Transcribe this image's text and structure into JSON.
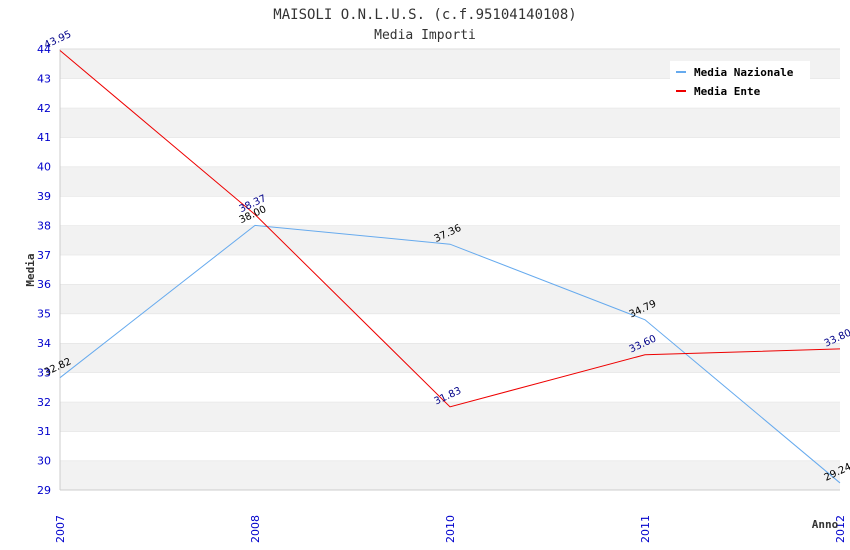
{
  "chart_data": {
    "type": "line",
    "title": "MAISOLI O.N.L.U.S. (c.f.95104140108)",
    "subtitle": "Media Importi",
    "xlabel": "Anno",
    "ylabel": "Media",
    "categories": [
      "2007",
      "2008",
      "2010",
      "2011",
      "2012"
    ],
    "ylim": [
      29,
      44
    ],
    "yticks": [
      29,
      30,
      31,
      32,
      33,
      34,
      35,
      36,
      37,
      38,
      39,
      40,
      41,
      42,
      43,
      44
    ],
    "grid": true,
    "legend_position": "top-right",
    "series": [
      {
        "name": "Media Nazionale",
        "color": "#66aaee",
        "label_color": "#000000",
        "values": [
          32.82,
          38.0,
          37.36,
          34.79,
          29.24
        ],
        "labels": [
          "32.82",
          "38.00",
          "37.36",
          "34.79",
          "29.24"
        ]
      },
      {
        "name": "Media Ente",
        "color": "#ee0000",
        "label_color": "#000088",
        "values": [
          43.95,
          38.37,
          31.83,
          33.6,
          33.8
        ],
        "labels": [
          "43.95",
          "38.37",
          "31.83",
          "33.60",
          "33.80"
        ]
      }
    ]
  }
}
